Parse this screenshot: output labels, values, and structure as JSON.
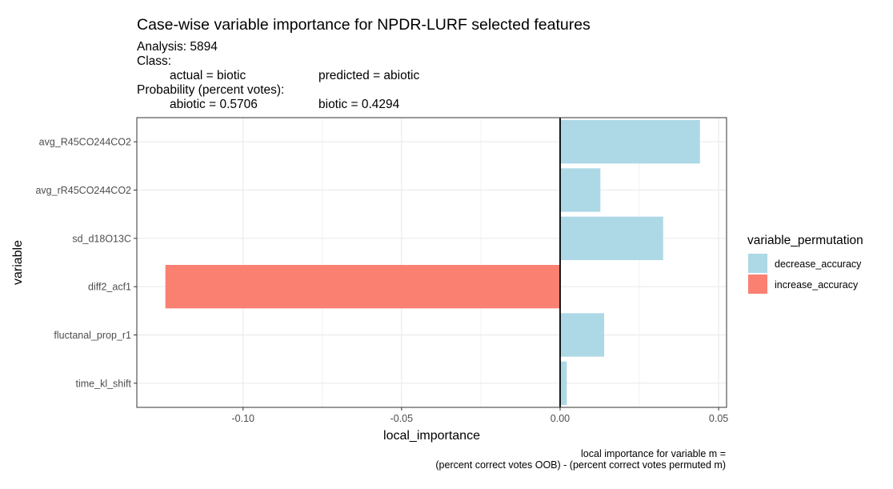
{
  "chart_data": {
    "type": "bar",
    "orientation": "horizontal",
    "title": "Case-wise variable importance for NPDR-LURF selected features",
    "subtitle": {
      "analysis": "Analysis: 5894",
      "class_label": "Class:",
      "actual": "actual = biotic",
      "predicted": "predicted = abiotic",
      "probability_label": "Probability (percent votes):",
      "prob_abiotic": "abiotic = 0.5706",
      "prob_biotic": "biotic = 0.4294"
    },
    "xlabel": "local_importance",
    "ylabel": "variable",
    "caption_line1": "local importance for variable m =",
    "caption_line2": "(percent correct votes OOB) - (percent correct votes permuted m)",
    "xlim": [
      -0.1335,
      0.0525
    ],
    "xticks": [
      -0.1,
      -0.05,
      0.0,
      0.05
    ],
    "xtick_labels": [
      "-0.10",
      "-0.05",
      "0.00",
      "0.05"
    ],
    "grid": true,
    "legend_position": "right",
    "legend": {
      "title": "variable_permutation",
      "items": [
        {
          "key": "decrease_accuracy",
          "label": "decrease_accuracy",
          "color": "#add8e6"
        },
        {
          "key": "increase_accuracy",
          "label": "increase_accuracy",
          "color": "#fa8072"
        }
      ]
    },
    "categories": [
      "avg_R45CO244CO2",
      "avg_rR45CO244CO2",
      "sd_d18O13C",
      "diff2_acf1",
      "fluctanal_prop_r1",
      "time_kl_shift"
    ],
    "values": [
      0.0441,
      0.0127,
      0.0325,
      -0.1245,
      0.0139,
      0.0021
    ],
    "groups": [
      "decrease_accuracy",
      "decrease_accuracy",
      "decrease_accuracy",
      "increase_accuracy",
      "decrease_accuracy",
      "decrease_accuracy"
    ]
  }
}
